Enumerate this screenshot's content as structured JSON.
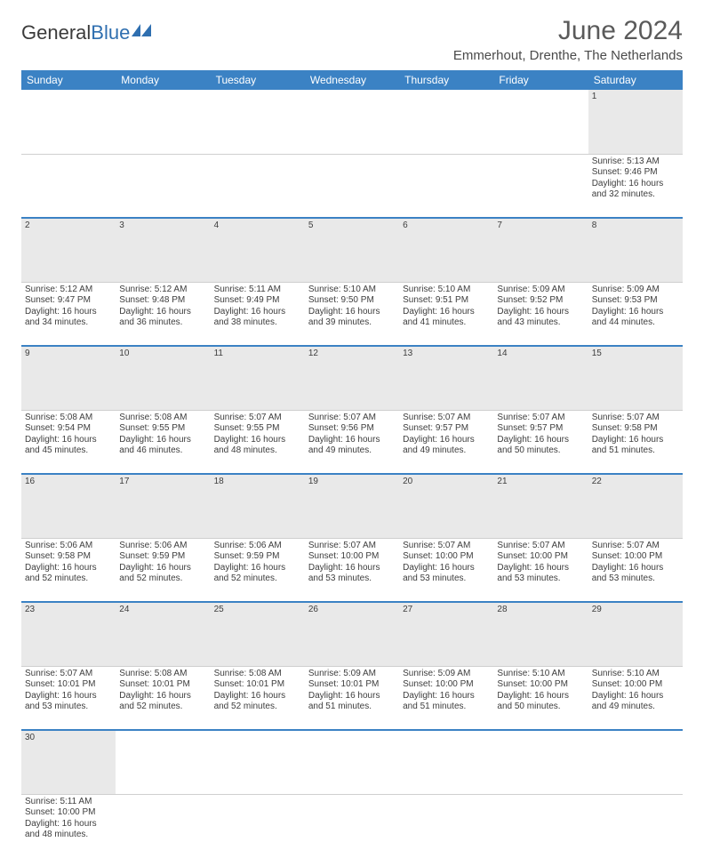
{
  "logo": {
    "word1": "General",
    "word2": "Blue"
  },
  "title": "June 2024",
  "location": "Emmerhout, Drenthe, The Netherlands",
  "colors": {
    "header_bg": "#3b82c4",
    "header_fg": "#ffffff",
    "daynum_bg": "#e9e9e9",
    "row_border": "#3b82c4",
    "text": "#3d3d3d",
    "title_color": "#5a5a5a"
  },
  "day_headers": [
    "Sunday",
    "Monday",
    "Tuesday",
    "Wednesday",
    "Thursday",
    "Friday",
    "Saturday"
  ],
  "weeks": [
    [
      null,
      null,
      null,
      null,
      null,
      null,
      {
        "n": "1",
        "sunrise": "5:13 AM",
        "sunset": "9:46 PM",
        "daylight_h": "16",
        "daylight_m": "32"
      }
    ],
    [
      {
        "n": "2",
        "sunrise": "5:12 AM",
        "sunset": "9:47 PM",
        "daylight_h": "16",
        "daylight_m": "34"
      },
      {
        "n": "3",
        "sunrise": "5:12 AM",
        "sunset": "9:48 PM",
        "daylight_h": "16",
        "daylight_m": "36"
      },
      {
        "n": "4",
        "sunrise": "5:11 AM",
        "sunset": "9:49 PM",
        "daylight_h": "16",
        "daylight_m": "38"
      },
      {
        "n": "5",
        "sunrise": "5:10 AM",
        "sunset": "9:50 PM",
        "daylight_h": "16",
        "daylight_m": "39"
      },
      {
        "n": "6",
        "sunrise": "5:10 AM",
        "sunset": "9:51 PM",
        "daylight_h": "16",
        "daylight_m": "41"
      },
      {
        "n": "7",
        "sunrise": "5:09 AM",
        "sunset": "9:52 PM",
        "daylight_h": "16",
        "daylight_m": "43"
      },
      {
        "n": "8",
        "sunrise": "5:09 AM",
        "sunset": "9:53 PM",
        "daylight_h": "16",
        "daylight_m": "44"
      }
    ],
    [
      {
        "n": "9",
        "sunrise": "5:08 AM",
        "sunset": "9:54 PM",
        "daylight_h": "16",
        "daylight_m": "45"
      },
      {
        "n": "10",
        "sunrise": "5:08 AM",
        "sunset": "9:55 PM",
        "daylight_h": "16",
        "daylight_m": "46"
      },
      {
        "n": "11",
        "sunrise": "5:07 AM",
        "sunset": "9:55 PM",
        "daylight_h": "16",
        "daylight_m": "48"
      },
      {
        "n": "12",
        "sunrise": "5:07 AM",
        "sunset": "9:56 PM",
        "daylight_h": "16",
        "daylight_m": "49"
      },
      {
        "n": "13",
        "sunrise": "5:07 AM",
        "sunset": "9:57 PM",
        "daylight_h": "16",
        "daylight_m": "49"
      },
      {
        "n": "14",
        "sunrise": "5:07 AM",
        "sunset": "9:57 PM",
        "daylight_h": "16",
        "daylight_m": "50"
      },
      {
        "n": "15",
        "sunrise": "5:07 AM",
        "sunset": "9:58 PM",
        "daylight_h": "16",
        "daylight_m": "51"
      }
    ],
    [
      {
        "n": "16",
        "sunrise": "5:06 AM",
        "sunset": "9:58 PM",
        "daylight_h": "16",
        "daylight_m": "52"
      },
      {
        "n": "17",
        "sunrise": "5:06 AM",
        "sunset": "9:59 PM",
        "daylight_h": "16",
        "daylight_m": "52"
      },
      {
        "n": "18",
        "sunrise": "5:06 AM",
        "sunset": "9:59 PM",
        "daylight_h": "16",
        "daylight_m": "52"
      },
      {
        "n": "19",
        "sunrise": "5:07 AM",
        "sunset": "10:00 PM",
        "daylight_h": "16",
        "daylight_m": "53"
      },
      {
        "n": "20",
        "sunrise": "5:07 AM",
        "sunset": "10:00 PM",
        "daylight_h": "16",
        "daylight_m": "53"
      },
      {
        "n": "21",
        "sunrise": "5:07 AM",
        "sunset": "10:00 PM",
        "daylight_h": "16",
        "daylight_m": "53"
      },
      {
        "n": "22",
        "sunrise": "5:07 AM",
        "sunset": "10:00 PM",
        "daylight_h": "16",
        "daylight_m": "53"
      }
    ],
    [
      {
        "n": "23",
        "sunrise": "5:07 AM",
        "sunset": "10:01 PM",
        "daylight_h": "16",
        "daylight_m": "53"
      },
      {
        "n": "24",
        "sunrise": "5:08 AM",
        "sunset": "10:01 PM",
        "daylight_h": "16",
        "daylight_m": "52"
      },
      {
        "n": "25",
        "sunrise": "5:08 AM",
        "sunset": "10:01 PM",
        "daylight_h": "16",
        "daylight_m": "52"
      },
      {
        "n": "26",
        "sunrise": "5:09 AM",
        "sunset": "10:01 PM",
        "daylight_h": "16",
        "daylight_m": "51"
      },
      {
        "n": "27",
        "sunrise": "5:09 AM",
        "sunset": "10:00 PM",
        "daylight_h": "16",
        "daylight_m": "51"
      },
      {
        "n": "28",
        "sunrise": "5:10 AM",
        "sunset": "10:00 PM",
        "daylight_h": "16",
        "daylight_m": "50"
      },
      {
        "n": "29",
        "sunrise": "5:10 AM",
        "sunset": "10:00 PM",
        "daylight_h": "16",
        "daylight_m": "49"
      }
    ],
    [
      {
        "n": "30",
        "sunrise": "5:11 AM",
        "sunset": "10:00 PM",
        "daylight_h": "16",
        "daylight_m": "48"
      },
      null,
      null,
      null,
      null,
      null,
      null
    ]
  ],
  "labels": {
    "sunrise_prefix": "Sunrise: ",
    "sunset_prefix": "Sunset: ",
    "daylight_prefix": "Daylight: ",
    "hours_word": " hours",
    "and_word": "and ",
    "minutes_word": " minutes."
  }
}
